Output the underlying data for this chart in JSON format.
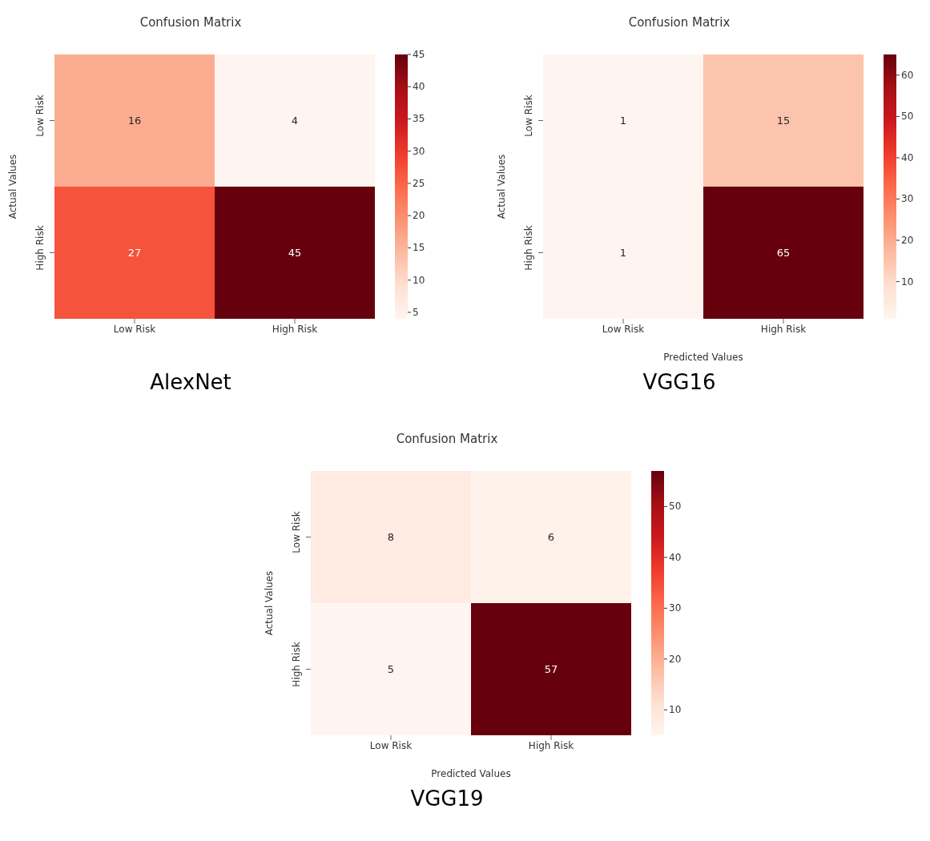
{
  "chart_data": [
    {
      "type": "heatmap",
      "title": "Confusion Matrix",
      "ylabel": "Actual Values",
      "categories": [
        "Low Risk",
        "High Risk"
      ],
      "y_categories": [
        "Low Risk",
        "High Risk"
      ],
      "cells": [
        [
          16,
          4
        ],
        [
          27,
          45
        ]
      ],
      "clim": [
        4,
        45
      ],
      "cticks": [
        5,
        10,
        15,
        20,
        25,
        30,
        35,
        40,
        45
      ],
      "data_labels": true,
      "annotations": [
        "AlexNet"
      ]
    },
    {
      "type": "heatmap",
      "title": "Confusion Matrix",
      "xlabel": "Predicted Values",
      "ylabel": "Actual Values",
      "categories": [
        "Low Risk",
        "High Risk"
      ],
      "y_categories": [
        "Low Risk",
        "High Risk"
      ],
      "cells": [
        [
          1,
          15
        ],
        [
          1,
          65
        ]
      ],
      "clim": [
        1,
        65
      ],
      "cticks": [
        10,
        20,
        30,
        40,
        50,
        60
      ],
      "data_labels": true,
      "annotations": [
        "VGG16"
      ]
    },
    {
      "type": "heatmap",
      "title": "Confusion Matrix",
      "xlabel": "Predicted Values",
      "ylabel": "Actual Values",
      "categories": [
        "Low Risk",
        "High Risk"
      ],
      "y_categories": [
        "Low Risk",
        "High Risk"
      ],
      "cells": [
        [
          8,
          6
        ],
        [
          5,
          57
        ]
      ],
      "clim": [
        5,
        57
      ],
      "cticks": [
        10,
        20,
        30,
        40,
        50
      ],
      "data_labels": true,
      "annotations": [
        "VGG19"
      ]
    }
  ]
}
